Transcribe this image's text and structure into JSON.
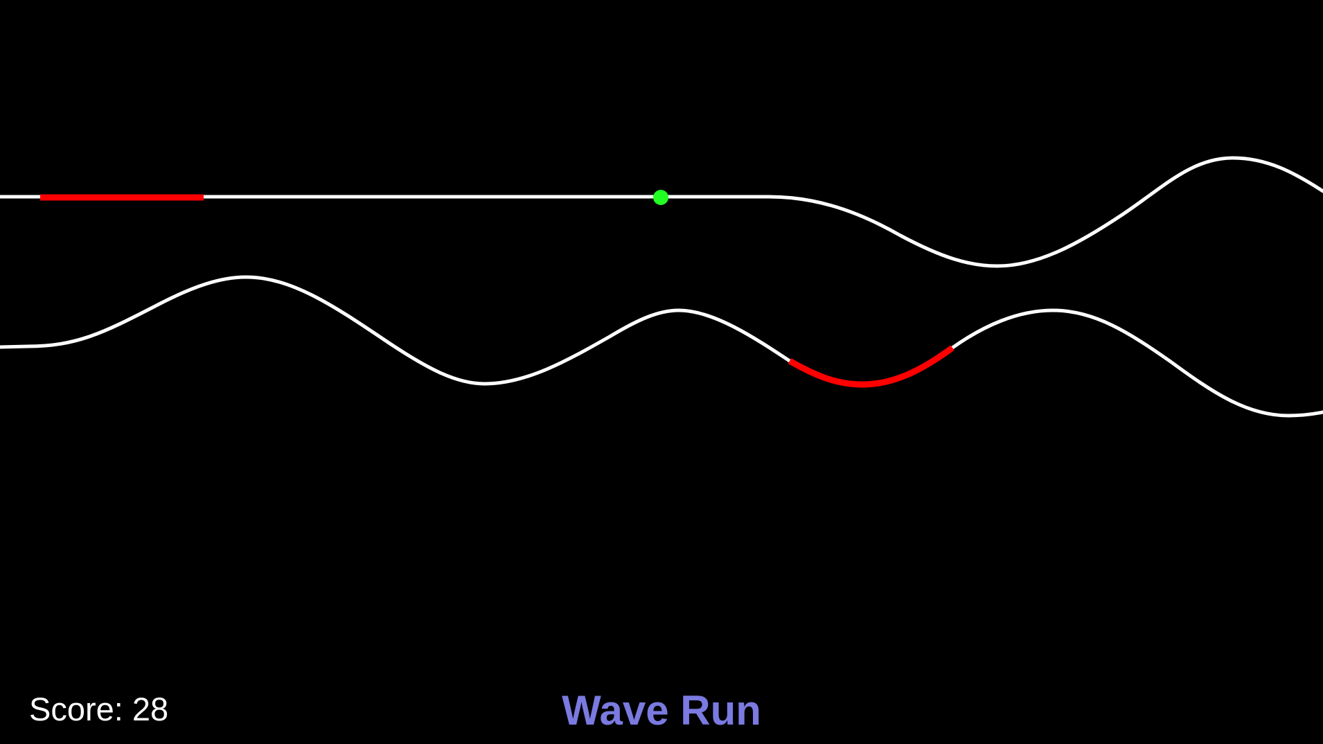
{
  "game": {
    "title": "Wave Run",
    "score_label": "Score:",
    "score_value": "28"
  },
  "colors": {
    "background": "#000000",
    "track": "#ffffff",
    "hazard": "#ff0000",
    "player": "#22ff22",
    "title": "#7a7ae0",
    "score_text": "#ffffff"
  },
  "icons": {
    "player": "green-dot",
    "hazard": "red-segment"
  }
}
